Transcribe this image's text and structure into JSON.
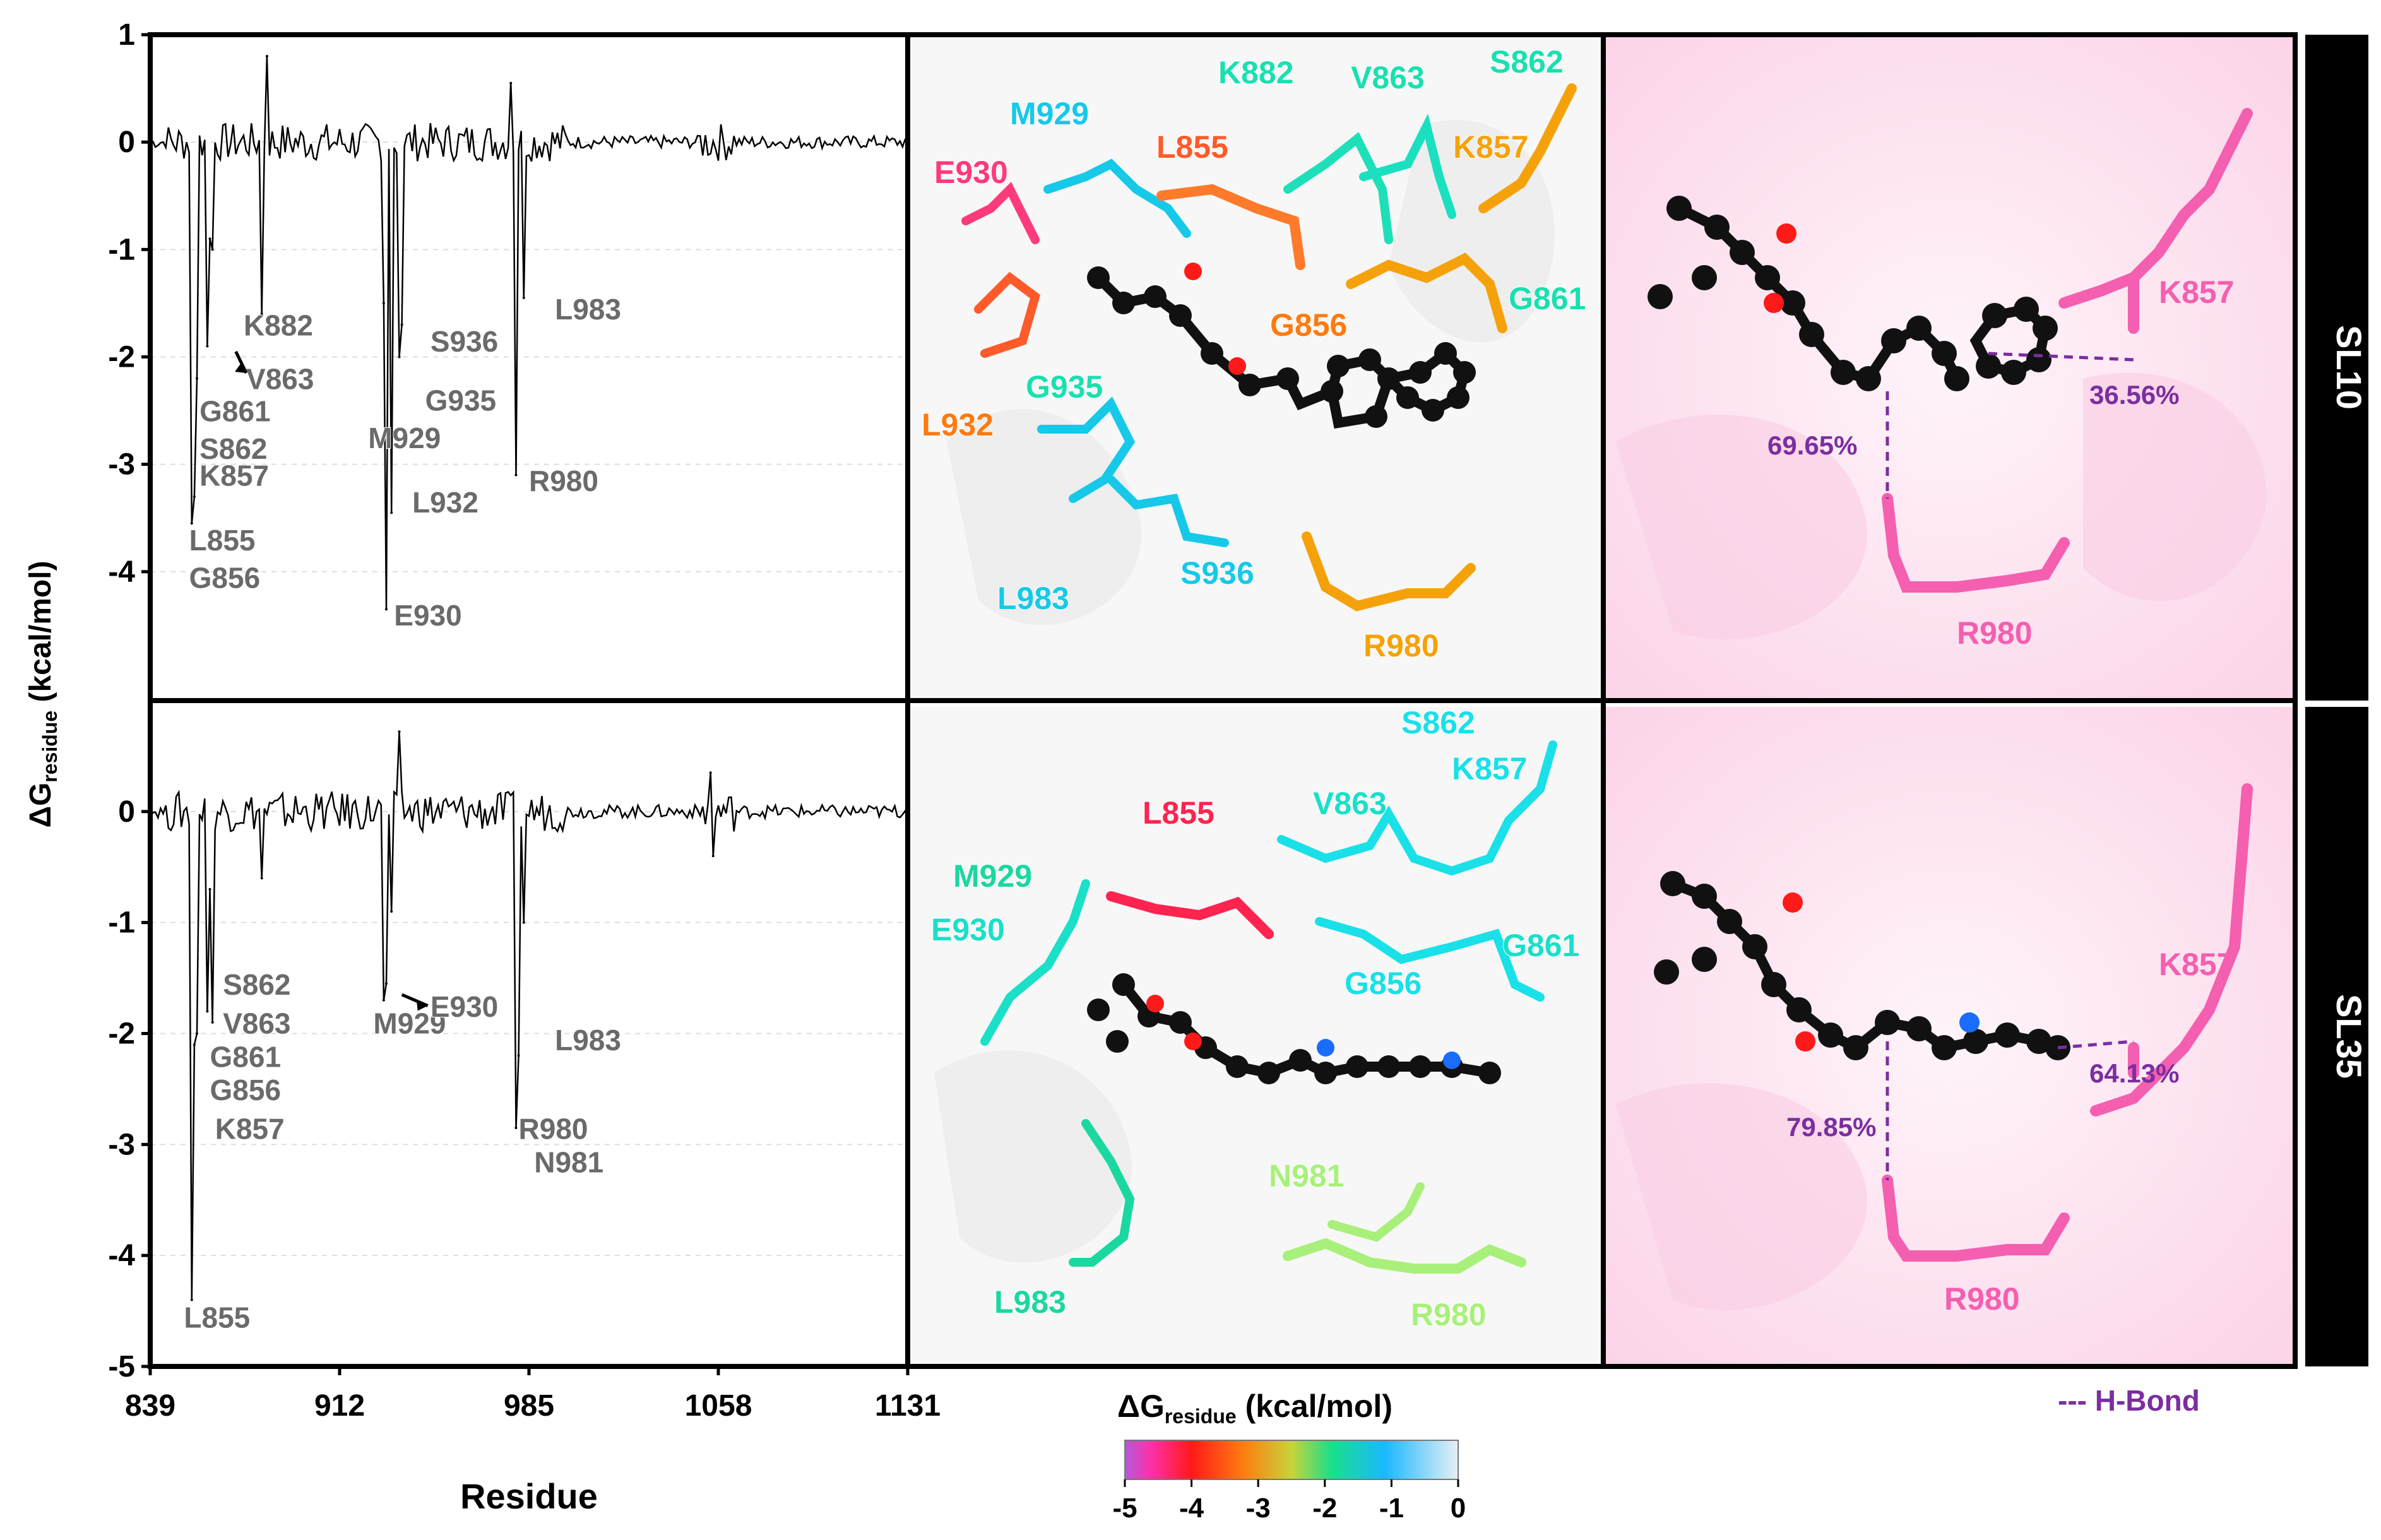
{
  "chart_data": [
    {
      "type": "line",
      "panel": "SL10",
      "xlabel": "Residue",
      "ylabel": "ΔGresidue (kcal/mol)",
      "xlim": [
        839,
        1131
      ],
      "ylim": [
        -5,
        1
      ],
      "xticks": [
        839,
        912,
        985,
        1058,
        1131
      ],
      "yticks": [
        1,
        0,
        -1,
        -2,
        -3,
        -4
      ],
      "grid": "horizontal-dashed",
      "peaks": [
        {
          "residue": 855,
          "value": -3.55
        },
        {
          "residue": 856,
          "value": -3.3
        },
        {
          "residue": 857,
          "value": -2.2
        },
        {
          "residue": 861,
          "value": -1.9
        },
        {
          "residue": 862,
          "value": -0.9
        },
        {
          "residue": 863,
          "value": -1.0
        },
        {
          "residue": 882,
          "value": -1.6
        },
        {
          "residue": 884,
          "value": 0.8
        },
        {
          "residue": 929,
          "value": -1.5
        },
        {
          "residue": 930,
          "value": -4.35
        },
        {
          "residue": 932,
          "value": -3.45
        },
        {
          "residue": 935,
          "value": -2.0
        },
        {
          "residue": 936,
          "value": -1.7
        },
        {
          "residue": 980,
          "value": -3.1
        },
        {
          "residue": 983,
          "value": -1.45
        },
        {
          "residue": 978,
          "value": 0.55
        }
      ],
      "annotations": [
        "K882",
        "V863",
        "G861",
        "S862",
        "K857",
        "L855",
        "G856",
        "M929",
        "S936",
        "G935",
        "L932",
        "E930",
        "L983",
        "R980"
      ]
    },
    {
      "type": "line",
      "panel": "SL35",
      "xlabel": "Residue",
      "ylabel": "ΔGresidue (kcal/mol)",
      "xlim": [
        839,
        1131
      ],
      "ylim": [
        -5,
        1
      ],
      "xticks": [
        839,
        912,
        985,
        1058,
        1131
      ],
      "yticks": [
        0,
        -1,
        -2,
        -3,
        -4,
        -5
      ],
      "grid": "horizontal-dashed",
      "peaks": [
        {
          "residue": 855,
          "value": -4.4
        },
        {
          "residue": 856,
          "value": -2.1
        },
        {
          "residue": 857,
          "value": -2.0
        },
        {
          "residue": 861,
          "value": -1.8
        },
        {
          "residue": 862,
          "value": -0.7
        },
        {
          "residue": 863,
          "value": -1.9
        },
        {
          "residue": 882,
          "value": -0.6
        },
        {
          "residue": 929,
          "value": -1.7
        },
        {
          "residue": 930,
          "value": -1.55
        },
        {
          "residue": 932,
          "value": -0.9
        },
        {
          "residue": 935,
          "value": 0.72
        },
        {
          "residue": 980,
          "value": -2.85
        },
        {
          "residue": 981,
          "value": -2.2
        },
        {
          "residue": 983,
          "value": -1.0
        },
        {
          "residue": 1055,
          "value": 0.35
        },
        {
          "residue": 1056,
          "value": -0.4
        }
      ],
      "annotations": [
        "S862",
        "V863",
        "G861",
        "G856",
        "K857",
        "L855",
        "M929",
        "E930",
        "L983",
        "R980",
        "N981"
      ]
    }
  ],
  "rows": [
    {
      "tag": "SL10",
      "structure_labels": [
        "K882",
        "V863",
        "S862",
        "M929",
        "E930",
        "L855",
        "K857",
        "G861",
        "G856",
        "L932",
        "G935",
        "L983",
        "S936",
        "R980"
      ],
      "hbond_residues": [
        "K857",
        "R980"
      ],
      "hbond_percents": [
        "36.56%",
        "69.65%"
      ]
    },
    {
      "tag": "SL35",
      "structure_labels": [
        "S862",
        "K857",
        "V863",
        "L855",
        "M929",
        "E930",
        "G861",
        "G856",
        "N981",
        "L983",
        "R980"
      ],
      "hbond_residues": [
        "K857",
        "R980"
      ],
      "hbond_percents": [
        "64.13%",
        "79.85%"
      ]
    }
  ],
  "colorbar": {
    "title": "ΔG",
    "title_sub": "residue",
    "title_unit": "(kcal/mol)",
    "ticks": [
      "-5",
      "-4",
      "-3",
      "-2",
      "-1",
      "0"
    ]
  },
  "legend": {
    "hbond": "--- H-Bond"
  },
  "colors": {
    "hbond": "#7b2ea0",
    "pink": "#f45fb0",
    "black": "#111111"
  }
}
